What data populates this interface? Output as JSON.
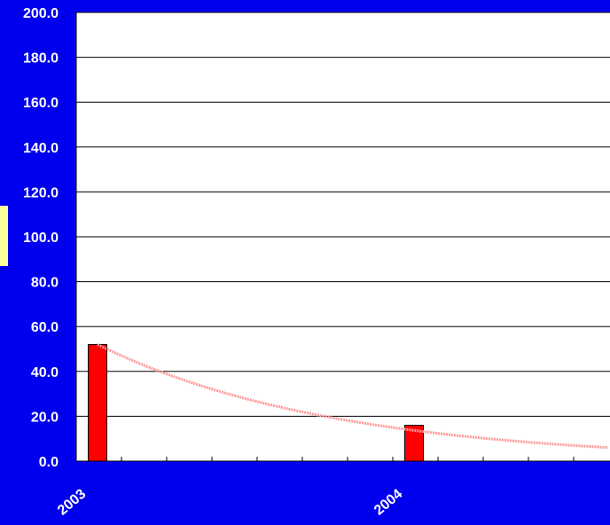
{
  "chart_data": {
    "type": "bar",
    "title": "",
    "xlabel": "",
    "ylabel": "",
    "categories": [
      "2003",
      "2004"
    ],
    "series": [
      {
        "values": [
          52,
          16
        ]
      }
    ],
    "trendline": {
      "type": "exponential",
      "start_value": 52,
      "end_value": 6,
      "color": "#ff9999"
    },
    "ylim": [
      0,
      200
    ],
    "yticks": [
      "0.0",
      "20.0",
      "40.0",
      "60.0",
      "80.0",
      "100.0",
      "120.0",
      "140.0",
      "160.0",
      "180.0",
      "200.0"
    ],
    "grid": true,
    "legend": "none",
    "colors": {
      "background": "#0000ee",
      "plot_area": "#ffffff",
      "bar": "#ff0000",
      "text": "#ffffff",
      "side_marker": "#ffff99"
    }
  }
}
